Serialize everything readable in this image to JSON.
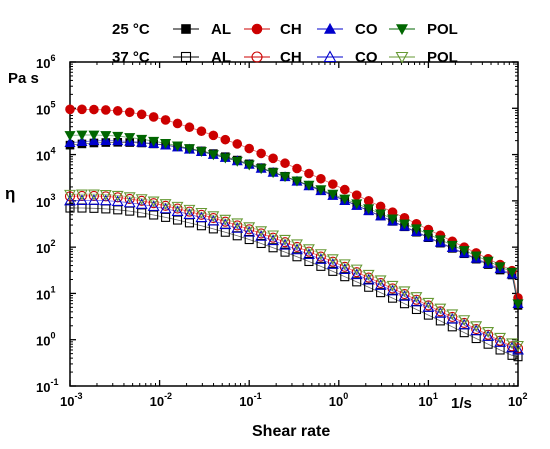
{
  "chart_data": {
    "type": "scatter",
    "xlabel": "Shear rate",
    "xunit": "1/s",
    "ylabel": "η",
    "yunit": "Pa s",
    "x_scale": "log",
    "y_scale": "log",
    "xlim": [
      0.001,
      100
    ],
    "ylim": [
      0.1,
      1000000
    ],
    "x_ticks": [
      {
        "value": 0.001,
        "base": "10",
        "exp": "-3"
      },
      {
        "value": 0.01,
        "base": "10",
        "exp": "-2"
      },
      {
        "value": 0.1,
        "base": "10",
        "exp": "-1"
      },
      {
        "value": 1,
        "base": "10",
        "exp": "0"
      },
      {
        "value": 10,
        "base": "10",
        "exp": "1"
      },
      {
        "value": 100,
        "base": "10",
        "exp": "2"
      }
    ],
    "y_ticks": [
      {
        "value": 0.1,
        "base": "10",
        "exp": "-1"
      },
      {
        "value": 1,
        "base": "10",
        "exp": "0"
      },
      {
        "value": 10,
        "base": "10",
        "exp": "1"
      },
      {
        "value": 100,
        "base": "10",
        "exp": "2"
      },
      {
        "value": 1000,
        "base": "10",
        "exp": "3"
      },
      {
        "value": 10000,
        "base": "10",
        "exp": "4"
      },
      {
        "value": 100000,
        "base": "10",
        "exp": "5"
      },
      {
        "value": 1000000,
        "base": "10",
        "exp": "6"
      }
    ],
    "grid": false,
    "legend": {
      "placement": "top",
      "rows": [
        {
          "label": "25 °C",
          "entries": [
            "AL",
            "CH",
            "CO",
            "POL"
          ]
        },
        {
          "label": "37 °C",
          "entries": [
            "AL",
            "CH",
            "CO",
            "POL"
          ]
        }
      ]
    },
    "x": [
      0.001,
      0.00136,
      0.00185,
      0.00251,
      0.00341,
      0.00464,
      0.00631,
      0.00858,
      0.01166,
      0.01585,
      0.02154,
      0.02929,
      0.03981,
      0.05412,
      0.07356,
      0.1,
      0.13594,
      0.18478,
      0.25119,
      0.34145,
      0.46416,
      0.63096,
      0.8577,
      1.16591,
      1.58489,
      2.15443,
      2.92864,
      3.98107,
      5.4117,
      7.35642,
      10.0,
      13.5936,
      18.4785,
      25.1189,
      34.1455,
      46.4159,
      63.0957,
      85.7696,
      100.0
    ],
    "series": [
      {
        "name": "AL",
        "temperature": "25 °C",
        "marker": "square",
        "fill": "filled",
        "color": "#000000",
        "values": [
          16000,
          17000,
          17800,
          18200,
          18400,
          18200,
          17800,
          17000,
          16000,
          14800,
          13500,
          12000,
          10500,
          9000,
          7600,
          6300,
          5200,
          4200,
          3400,
          2700,
          2150,
          1700,
          1330,
          1030,
          800,
          610,
          470,
          360,
          275,
          210,
          160,
          122,
          94,
          72,
          55,
          42,
          32,
          25,
          5.5
        ]
      },
      {
        "name": "CH",
        "temperature": "25 °C",
        "marker": "circle",
        "fill": "filled",
        "color": "#cc0000",
        "values": [
          95000,
          95000,
          94000,
          92000,
          88000,
          82000,
          74000,
          65000,
          56000,
          47000,
          39000,
          32000,
          26000,
          21000,
          17000,
          13500,
          10600,
          8300,
          6500,
          5000,
          3900,
          3000,
          2300,
          1750,
          1330,
          1000,
          760,
          570,
          430,
          320,
          240,
          180,
          134,
          100,
          75,
          56,
          42,
          31,
          8
        ]
      },
      {
        "name": "CO",
        "temperature": "25 °C",
        "marker": "triangle-up",
        "fill": "filled",
        "color": "#0000cc",
        "values": [
          18000,
          19000,
          19800,
          20000,
          19800,
          19200,
          18300,
          17200,
          15900,
          14500,
          13000,
          11500,
          10000,
          8600,
          7300,
          6100,
          5000,
          4100,
          3300,
          2650,
          2100,
          1650,
          1300,
          1010,
          790,
          610,
          470,
          365,
          280,
          215,
          165,
          126,
          97,
          74,
          57,
          44,
          34,
          26,
          6
        ]
      },
      {
        "name": "POL",
        "temperature": "25 °C",
        "marker": "triangle-down",
        "fill": "filled",
        "color": "#006600",
        "values": [
          26000,
          26500,
          26500,
          26000,
          25000,
          23500,
          21500,
          19500,
          17500,
          15500,
          13500,
          11700,
          10000,
          8500,
          7200,
          6000,
          5000,
          4100,
          3350,
          2700,
          2200,
          1750,
          1400,
          1100,
          870,
          680,
          530,
          410,
          320,
          250,
          190,
          145,
          110,
          85,
          65,
          50,
          38,
          29,
          6
        ]
      },
      {
        "name": "AL",
        "temperature": "37 °C",
        "marker": "square",
        "fill": "open",
        "color": "#000000",
        "values": [
          700,
          700,
          690,
          670,
          640,
          600,
          550,
          495,
          440,
          385,
          335,
          290,
          248,
          210,
          176,
          146,
          120,
          97,
          78,
          62,
          49,
          38.5,
          30,
          23,
          17.8,
          13.6,
          10.4,
          7.9,
          6.0,
          4.5,
          3.4,
          2.55,
          1.9,
          1.42,
          1.06,
          0.8,
          0.6,
          0.46,
          0.43
        ]
      },
      {
        "name": "CH",
        "temperature": "37 °C",
        "marker": "circle",
        "fill": "open",
        "color": "#cc0000",
        "values": [
          1250,
          1280,
          1280,
          1250,
          1190,
          1100,
          1000,
          890,
          780,
          680,
          585,
          500,
          425,
          355,
          295,
          243,
          198,
          160,
          128,
          101,
          80,
          62.5,
          48.5,
          37.5,
          28.8,
          22,
          16.8,
          12.8,
          9.7,
          7.3,
          5.5,
          4.1,
          3.1,
          2.3,
          1.7,
          1.28,
          0.95,
          0.72,
          0.65
        ]
      },
      {
        "name": "CO",
        "temperature": "37 °C",
        "marker": "triangle-up",
        "fill": "open",
        "color": "#0000cc",
        "values": [
          1000,
          1020,
          1030,
          1010,
          970,
          910,
          840,
          760,
          675,
          590,
          510,
          435,
          368,
          308,
          256,
          211,
          172,
          139,
          111,
          88,
          69.5,
          54.5,
          42.5,
          33,
          25.5,
          19.6,
          15,
          11.4,
          8.7,
          6.6,
          5.0,
          3.75,
          2.8,
          2.1,
          1.57,
          1.18,
          0.88,
          0.67,
          0.6
        ]
      },
      {
        "name": "POL",
        "temperature": "37 °C",
        "marker": "triangle-down",
        "fill": "open",
        "color": "#669933",
        "values": [
          1380,
          1400,
          1400,
          1370,
          1310,
          1220,
          1110,
          990,
          870,
          760,
          655,
          560,
          475,
          400,
          333,
          275,
          225,
          183,
          147,
          117,
          92,
          72,
          56,
          43.5,
          33.5,
          25.7,
          19.6,
          14.9,
          11.3,
          8.5,
          6.4,
          4.8,
          3.6,
          2.7,
          2.0,
          1.5,
          1.12,
          0.85,
          0.75
        ]
      }
    ]
  }
}
